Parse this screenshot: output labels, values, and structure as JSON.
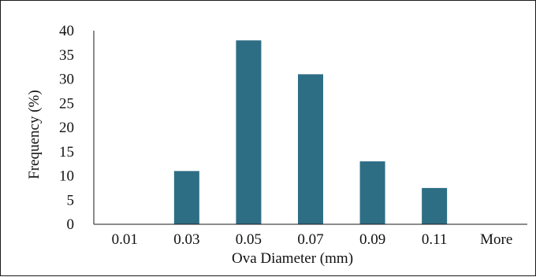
{
  "chart_data": {
    "type": "bar",
    "title": "",
    "xlabel": "Ova Diameter (mm)",
    "ylabel": "Frequency (%)",
    "categories": [
      "0.01",
      "0.03",
      "0.05",
      "0.07",
      "0.09",
      "0.11",
      "More"
    ],
    "values": [
      0,
      11,
      38,
      31,
      13,
      7.5,
      0
    ],
    "ylim": [
      0,
      40
    ],
    "yticks": [
      0,
      5,
      10,
      15,
      20,
      25,
      30,
      35,
      40
    ],
    "grid": false,
    "legend": "none",
    "bar_color": "#2e6e85"
  }
}
